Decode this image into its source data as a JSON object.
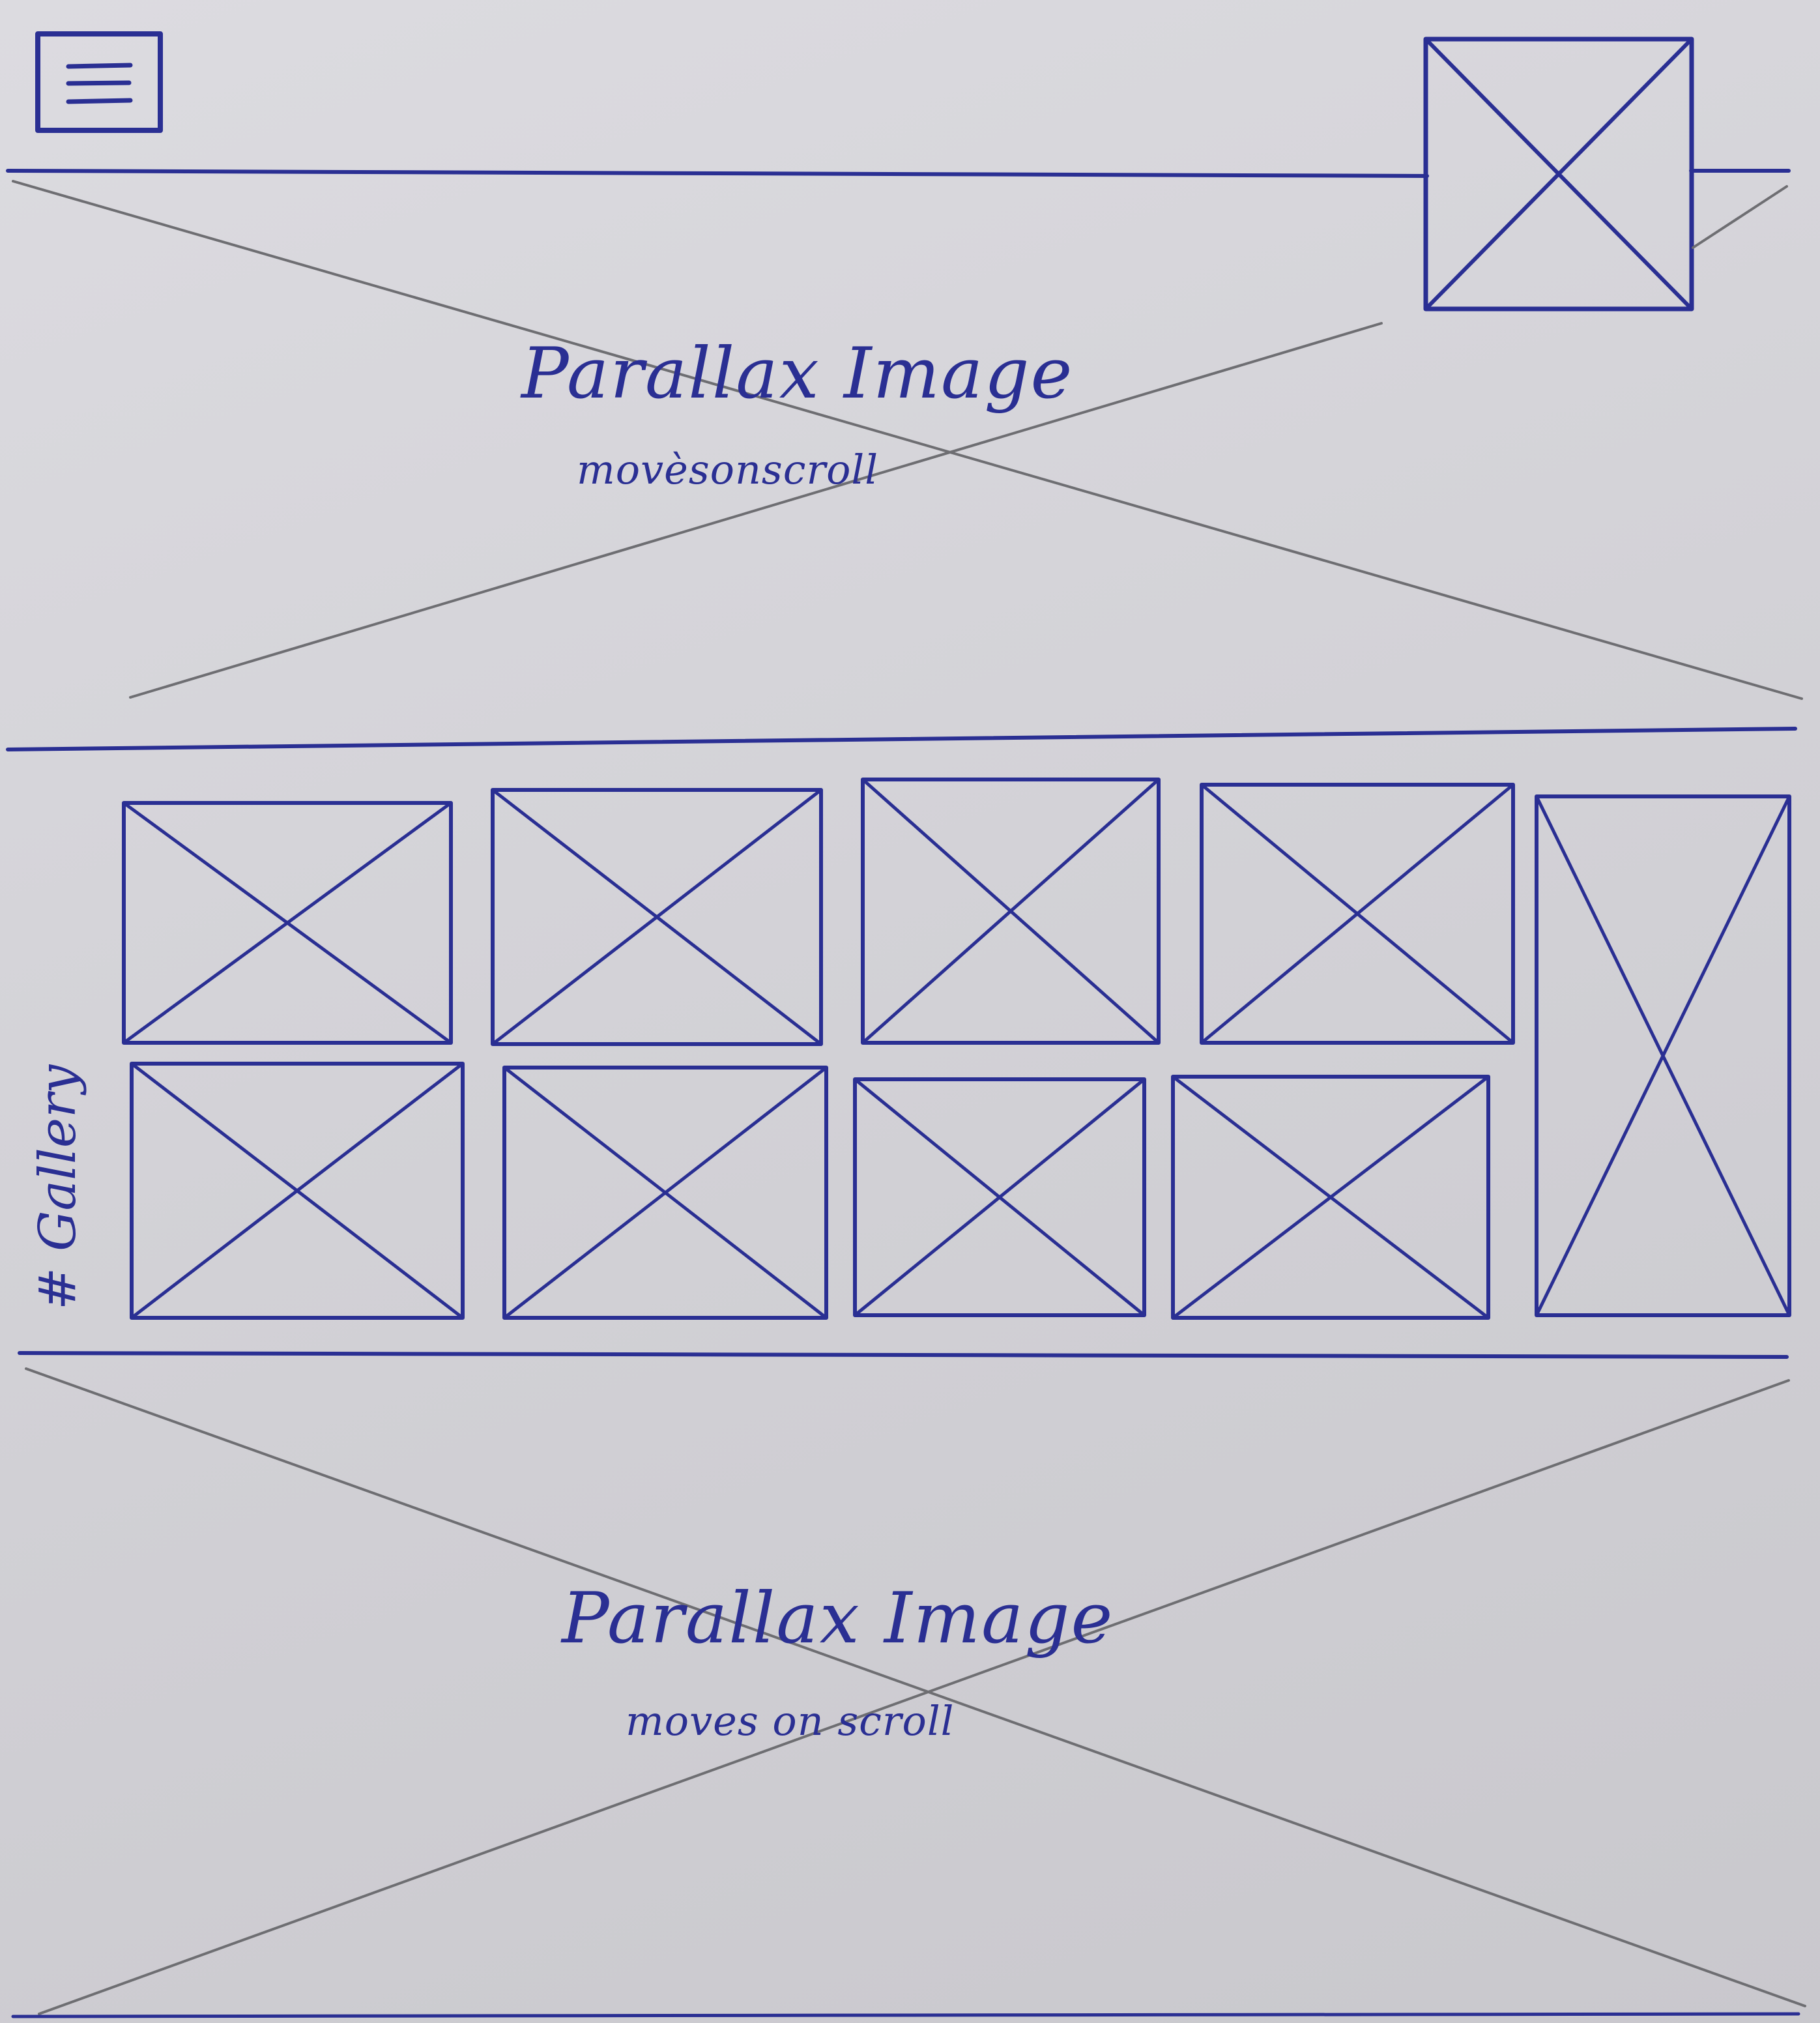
{
  "header": {
    "menu_icon": "hamburger-menu-icon",
    "logo_icon": "image-placeholder-icon"
  },
  "hero": {
    "title": "Parallax Image",
    "caption": "movèsonscroll"
  },
  "gallery": {
    "label": "# Gallery",
    "top_row_count": 4,
    "bottom_row_count": 4,
    "tall_count": 1
  },
  "footer_hero": {
    "title": "Parallax Image",
    "caption": "moves on scroll"
  },
  "colors": {
    "ink": "#2a2f93",
    "pencil": "#6e6e72",
    "paper": "#d6d5da"
  }
}
